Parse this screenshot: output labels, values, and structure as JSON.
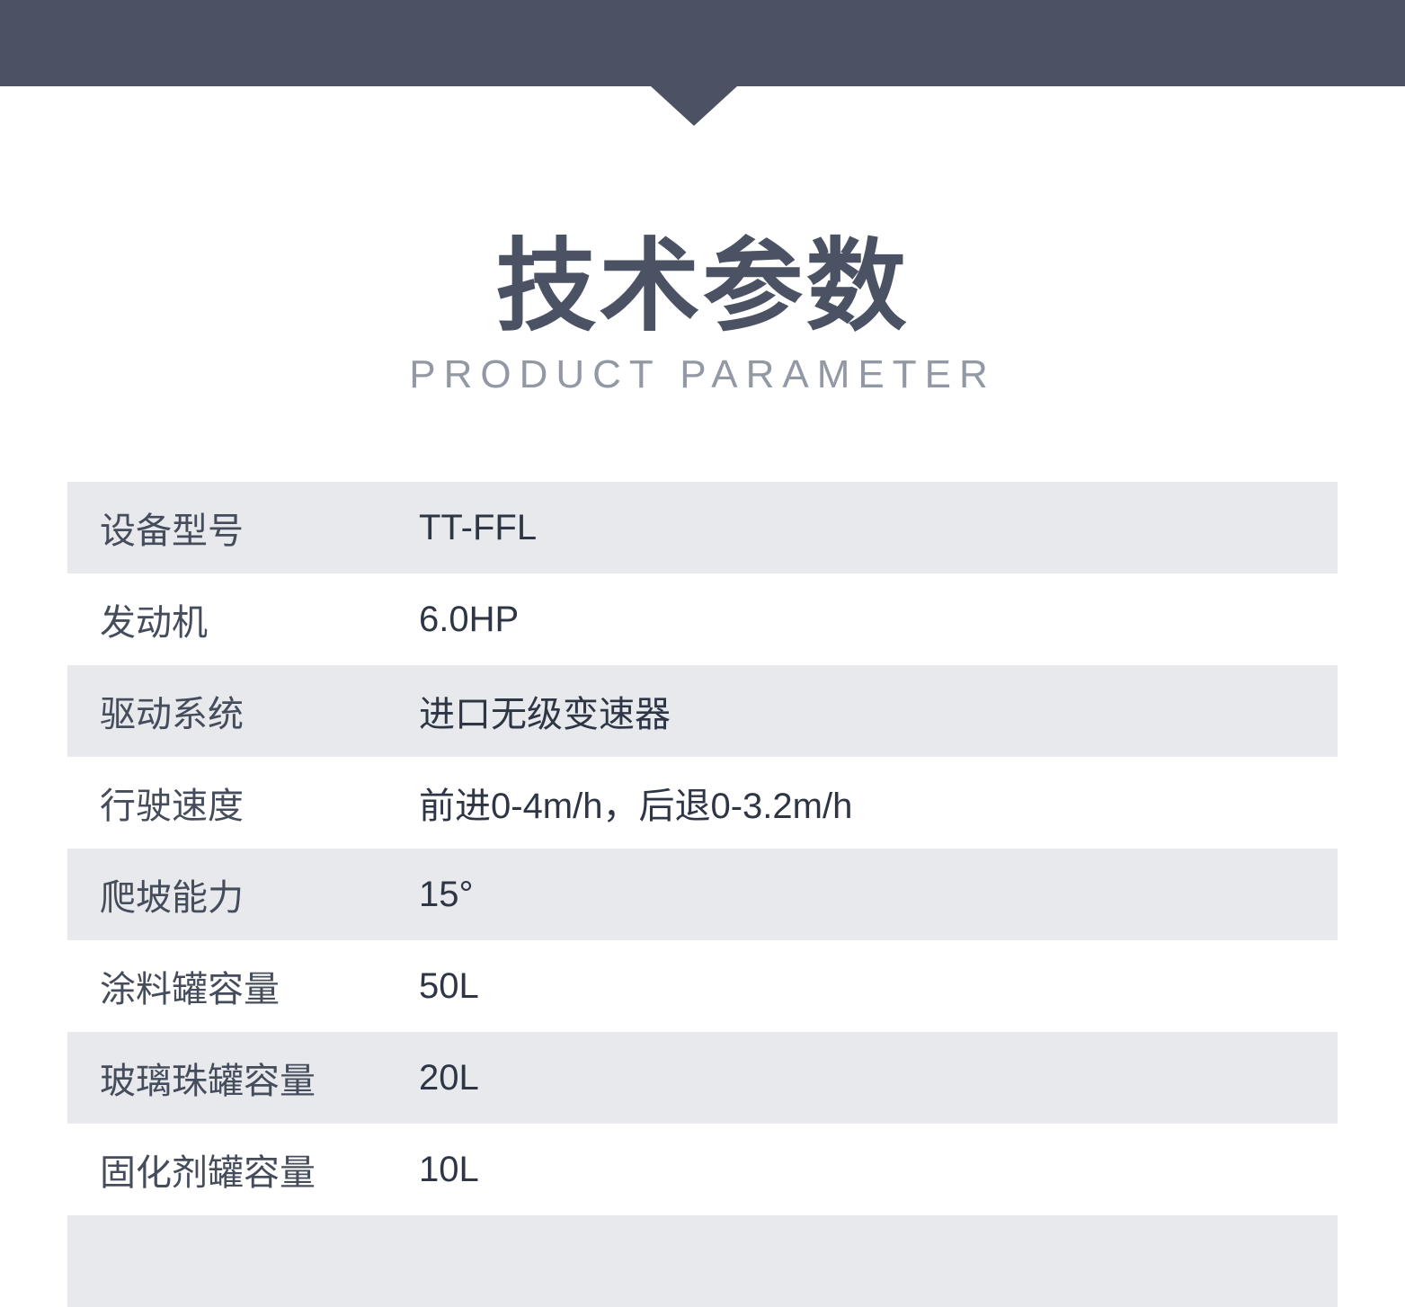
{
  "page": {
    "title": "技术参数",
    "subtitle": "PRODUCT PARAMETER"
  },
  "colors": {
    "header_band": "#4c5263",
    "row_alternate": "#e7e9ec",
    "title_text": "#4a5264",
    "subtitle_text": "#9298a4",
    "label_text": "#454d5c",
    "value_text": "#2e3646"
  },
  "spec_table": {
    "rows": [
      {
        "label": "设备型号",
        "value": "TT-FFL"
      },
      {
        "label": "发动机",
        "value": "6.0HP"
      },
      {
        "label": "驱动系统",
        "value": "进口无级变速器"
      },
      {
        "label": "行驶速度",
        "value": "前进0-4m/h，后退0-3.2m/h"
      },
      {
        "label": "爬坡能力",
        "value": "15°"
      },
      {
        "label": "涂料罐容量",
        "value": "50L"
      },
      {
        "label": "玻璃珠罐容量",
        "value": "20L"
      },
      {
        "label": "固化剂罐容量",
        "value": "10L"
      },
      {
        "label": "",
        "value": ""
      }
    ]
  }
}
